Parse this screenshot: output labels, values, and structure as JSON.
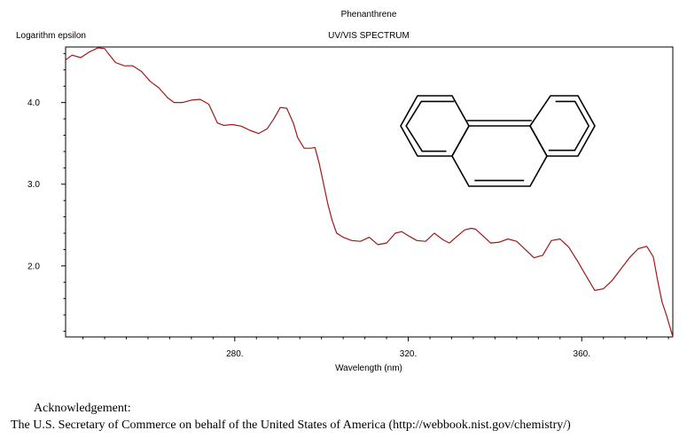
{
  "chart_data": {
    "type": "line",
    "title": "Phenanthrene",
    "subtitle": "UV/VIS SPECTRUM",
    "xlabel": "Wavelength (nm)",
    "ylabel": "Logarithm epsilon",
    "xlim": [
      241,
      381
    ],
    "ylim": [
      1.13,
      4.68
    ],
    "x_ticks": [
      280,
      320,
      360
    ],
    "x_tick_labels": [
      "280.",
      "320.",
      "360."
    ],
    "y_ticks": [
      2.0,
      3.0,
      4.0
    ],
    "y_tick_labels": [
      "2.0",
      "3.0",
      "4.0"
    ],
    "grid": false,
    "legend": "none",
    "line_color": "#a01818",
    "series": [
      {
        "x": [
          241.0,
          242.5,
          244.5,
          246.5,
          248.5,
          250.0,
          251.0,
          252.5,
          254.5,
          256.5,
          258.5,
          260.5,
          262.5,
          264.5,
          266.0,
          268.0,
          270.0,
          272.0,
          274.0,
          276.0,
          277.5,
          279.5,
          281.5,
          283.5,
          285.5,
          287.5,
          289.0,
          290.5,
          292.0,
          293.5,
          294.5,
          296.0,
          297.5,
          298.5,
          299.5,
          300.5,
          301.5,
          302.5,
          303.5,
          305.0,
          307.0,
          309.0,
          311.0,
          313.0,
          315.0,
          317.0,
          318.5,
          320.0,
          322.0,
          324.0,
          326.0,
          328.0,
          329.5,
          331.0,
          333.0,
          334.5,
          335.5,
          337.0,
          339.0,
          341.0,
          343.0,
          345.0,
          347.0,
          349.0,
          351.0,
          353.0,
          355.0,
          357.0,
          359.0,
          361.0,
          363.0,
          365.0,
          367.0,
          369.0,
          371.0,
          373.0,
          375.0,
          376.5,
          377.5,
          378.5,
          379.5,
          380.5,
          381.0
        ],
        "y": [
          4.52,
          4.58,
          4.55,
          4.62,
          4.67,
          4.66,
          4.59,
          4.49,
          4.45,
          4.45,
          4.38,
          4.26,
          4.18,
          4.06,
          4.0,
          4.0,
          4.03,
          4.04,
          3.98,
          3.75,
          3.72,
          3.73,
          3.71,
          3.66,
          3.62,
          3.68,
          3.8,
          3.94,
          3.93,
          3.75,
          3.57,
          3.44,
          3.44,
          3.45,
          3.25,
          3.0,
          2.75,
          2.55,
          2.4,
          2.35,
          2.31,
          2.3,
          2.35,
          2.26,
          2.28,
          2.4,
          2.42,
          2.37,
          2.31,
          2.3,
          2.4,
          2.32,
          2.28,
          2.35,
          2.44,
          2.46,
          2.45,
          2.38,
          2.28,
          2.29,
          2.33,
          2.3,
          2.2,
          2.1,
          2.13,
          2.31,
          2.33,
          2.23,
          2.06,
          1.88,
          1.7,
          1.72,
          1.82,
          1.96,
          2.1,
          2.21,
          2.24,
          2.11,
          1.82,
          1.56,
          1.4,
          1.22,
          1.13
        ]
      }
    ],
    "inset": "phenanthrene-structure"
  },
  "footer": {
    "ack_heading": "Acknowledgement:",
    "ack_text": "The U.S. Secretary of Commerce on behalf of the United States of America (http://webbook.nist.gov/chemistry/)"
  }
}
